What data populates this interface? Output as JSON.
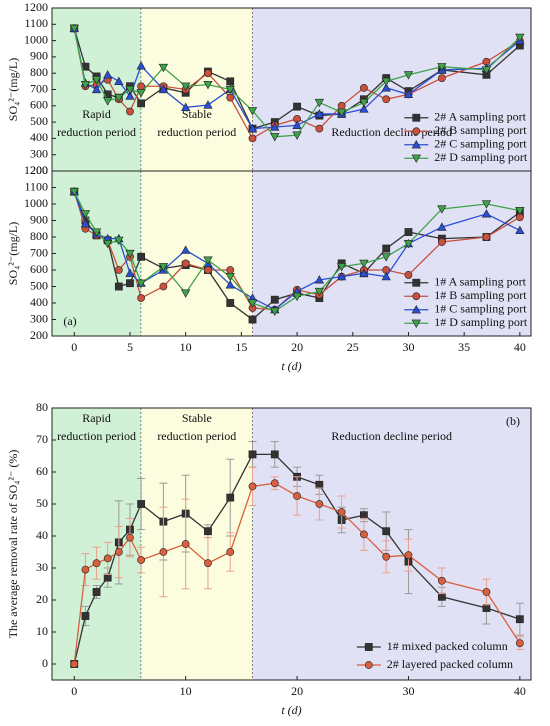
{
  "chart_data": [
    {
      "type": "line",
      "ylabel": "SO₄²⁻(mg/L)",
      "xlim": [
        -2,
        41
      ],
      "ylim": [
        200,
        1200
      ],
      "yticks": [
        200,
        300,
        400,
        500,
        600,
        700,
        800,
        900,
        1000,
        1100,
        1200
      ],
      "regions": [
        {
          "start": -2,
          "end": 6,
          "color": "#c9efd0",
          "label": [
            "Rapid",
            "reduction period"
          ]
        },
        {
          "start": 6,
          "end": 16,
          "color": "#fbfbd8",
          "label": [
            "Stable",
            "reduction period"
          ]
        },
        {
          "start": 16,
          "end": 41,
          "color": "#dcdcf5",
          "label": [
            "Reduction decline period"
          ]
        }
      ],
      "region_label_pos": "bottom",
      "legend": "lower right",
      "x": [
        0,
        1,
        2,
        3,
        4,
        5,
        6,
        8,
        10,
        12,
        14,
        16,
        18,
        20,
        22,
        24,
        26,
        28,
        30,
        33,
        37,
        40
      ],
      "series": [
        {
          "name": "2# A sampling port",
          "color": "#333333",
          "marker": "square",
          "values": [
            1075,
            840,
            780,
            670,
            650,
            720,
            615,
            710,
            680,
            810,
            750,
            460,
            500,
            595,
            540,
            550,
            640,
            770,
            690,
            820,
            790,
            970
          ]
        },
        {
          "name": "2# B sampling port",
          "color": "#c8503c",
          "marker": "circle",
          "values": [
            1075,
            720,
            730,
            760,
            640,
            565,
            720,
            720,
            700,
            800,
            650,
            400,
            480,
            520,
            460,
            600,
            710,
            640,
            670,
            770,
            870,
            1000
          ]
        },
        {
          "name": "2# C sampling port",
          "color": "#2a4fd6",
          "marker": "triangle-up",
          "values": [
            1075,
            740,
            700,
            790,
            750,
            660,
            845,
            700,
            590,
            605,
            700,
            460,
            470,
            480,
            550,
            550,
            580,
            710,
            670,
            820,
            830,
            1000
          ]
        },
        {
          "name": "2# D sampling port",
          "color": "#3fa34a",
          "marker": "triangle-down",
          "values": [
            1075,
            730,
            760,
            630,
            650,
            700,
            680,
            835,
            720,
            730,
            700,
            570,
            410,
            420,
            620,
            560,
            620,
            750,
            790,
            840,
            820,
            1020
          ]
        }
      ]
    },
    {
      "type": "line",
      "ylabel": "SO₄²⁻(mg/L)",
      "xlabel": "t (d)",
      "panel_label": "(a)",
      "xlim": [
        -2,
        41
      ],
      "ylim": [
        200,
        1200
      ],
      "xticks": [
        0,
        5,
        10,
        15,
        20,
        25,
        30,
        35,
        40
      ],
      "yticks": [
        200,
        300,
        400,
        500,
        600,
        700,
        800,
        900,
        1000,
        1100,
        1200
      ],
      "regions": [
        {
          "start": -2,
          "end": 6,
          "color": "#c9efd0"
        },
        {
          "start": 6,
          "end": 16,
          "color": "#fbfbd8"
        },
        {
          "start": 16,
          "end": 41,
          "color": "#dcdcf5"
        }
      ],
      "legend": "lower right",
      "x": [
        0,
        1,
        2,
        3,
        4,
        5,
        6,
        8,
        10,
        12,
        14,
        16,
        18,
        20,
        22,
        24,
        26,
        28,
        30,
        33,
        37,
        40
      ],
      "series": [
        {
          "name": "1# A sampling port",
          "color": "#333333",
          "marker": "square",
          "values": [
            1075,
            900,
            810,
            780,
            500,
            520,
            680,
            610,
            630,
            600,
            400,
            300,
            420,
            460,
            430,
            640,
            580,
            730,
            830,
            790,
            800,
            950
          ]
        },
        {
          "name": "1# B sampling port",
          "color": "#c8503c",
          "marker": "circle",
          "values": [
            1075,
            850,
            810,
            780,
            600,
            680,
            430,
            500,
            640,
            600,
            600,
            370,
            360,
            480,
            450,
            560,
            600,
            600,
            570,
            770,
            800,
            920
          ]
        },
        {
          "name": "1# C sampling port",
          "color": "#2a4fd6",
          "marker": "triangle-up",
          "values": [
            1075,
            880,
            820,
            790,
            790,
            580,
            520,
            600,
            720,
            640,
            510,
            430,
            360,
            470,
            540,
            560,
            580,
            560,
            760,
            860,
            940,
            840
          ]
        },
        {
          "name": "1# D sampling port",
          "color": "#3fa34a",
          "marker": "triangle-down",
          "values": [
            1075,
            940,
            830,
            760,
            780,
            700,
            520,
            620,
            460,
            660,
            560,
            400,
            350,
            440,
            470,
            620,
            640,
            680,
            760,
            970,
            1000,
            960
          ]
        }
      ]
    },
    {
      "type": "line",
      "ylabel": "The average removal rate of SO₄²⁻ (%)",
      "xlabel": "t (d)",
      "panel_label": "(b)",
      "xlim": [
        -2,
        41
      ],
      "ylim": [
        -5,
        80
      ],
      "xticks": [
        0,
        10,
        20,
        30,
        40
      ],
      "yticks": [
        0,
        10,
        20,
        30,
        40,
        50,
        60,
        70,
        80
      ],
      "regions": [
        {
          "start": -2,
          "end": 6,
          "color": "#c9efd0",
          "label": [
            "Rapid",
            "reduction period"
          ]
        },
        {
          "start": 6,
          "end": 16,
          "color": "#fbfbd8",
          "label": [
            "Stable",
            "reduction period"
          ]
        },
        {
          "start": 16,
          "end": 41,
          "color": "#dcdcf5",
          "label": [
            "Reduction decline period"
          ]
        }
      ],
      "region_label_pos": "top",
      "legend": "lower right",
      "x": [
        0,
        1,
        2,
        3,
        4,
        5,
        6,
        8,
        10,
        12,
        14,
        16,
        18,
        20,
        22,
        24,
        26,
        28,
        30,
        33,
        37,
        40
      ],
      "series": [
        {
          "name": "1# mixed packed column",
          "color": "#333333",
          "error_color": "#999999",
          "marker": "square",
          "values": [
            0,
            15,
            22.5,
            27,
            38,
            42,
            50,
            44.5,
            47,
            41.5,
            52,
            65.5,
            65.5,
            58.5,
            56,
            45,
            46.5,
            41.5,
            32,
            21,
            17.5,
            14
          ],
          "errors": [
            0,
            3,
            2,
            3,
            13,
            8,
            8,
            12,
            12,
            2,
            12,
            4,
            4,
            3,
            3,
            4,
            2,
            6,
            10,
            3,
            5,
            5
          ]
        },
        {
          "name": "2# layered packed column",
          "color": "#d9603e",
          "error_color": "#eaa08c",
          "marker": "circle",
          "values": [
            0,
            29.5,
            31.5,
            33,
            35,
            39.5,
            32.5,
            35,
            37.5,
            31.5,
            35,
            55.5,
            56.5,
            52.5,
            50,
            47.5,
            40.5,
            33.5,
            34,
            26,
            22.5,
            6.5
          ],
          "errors": [
            0,
            5,
            5,
            5,
            8,
            6,
            4,
            14,
            14,
            8,
            6,
            6,
            2,
            6,
            5,
            5,
            5,
            5,
            5,
            4,
            4,
            2
          ]
        }
      ]
    }
  ]
}
